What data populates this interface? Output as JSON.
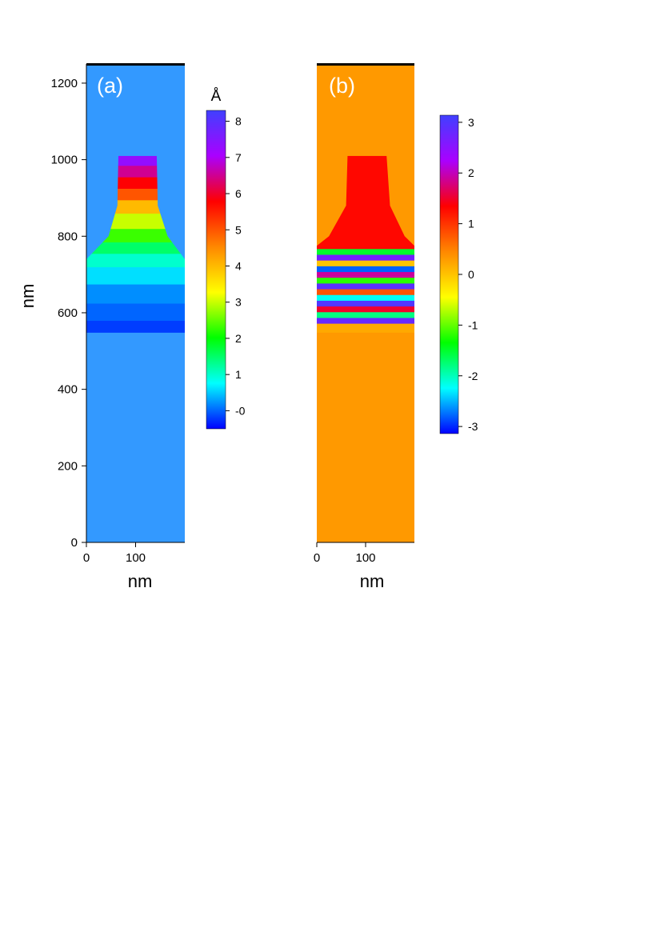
{
  "chart_data": [
    {
      "type": "heatmap",
      "panel_label": "(a)",
      "xlabel": "nm",
      "ylabel": "nm",
      "x_ticks": [
        0,
        100
      ],
      "y_ticks": [
        0,
        200,
        400,
        600,
        800,
        1000,
        1200
      ],
      "xlim": [
        0,
        200
      ],
      "ylim": [
        0,
        1250
      ],
      "background_color": "#3399ff",
      "colorbar": {
        "unit": "Å",
        "range": [
          -0.5,
          8.3
        ],
        "ticks": [
          8,
          7,
          6,
          5,
          4,
          3,
          2,
          1,
          0
        ],
        "tick_labels": [
          "8",
          "7",
          "6",
          "5",
          "4",
          "3",
          "2",
          "1",
          "-0"
        ],
        "colormap": [
          "#0000ff",
          "#00ffff",
          "#00ff00",
          "#ffff00",
          "#ff8800",
          "#ff0000",
          "#aa00ff",
          "#4040ff"
        ]
      },
      "structure_outline_nm": [
        [
          0,
          548
        ],
        [
          200,
          548
        ],
        [
          200,
          740
        ],
        [
          165,
          800
        ],
        [
          145,
          880
        ],
        [
          143,
          1010
        ],
        [
          65,
          1010
        ],
        [
          63,
          880
        ],
        [
          45,
          800
        ],
        [
          0,
          740
        ]
      ],
      "field_profile_center": [
        {
          "y": 560,
          "value": -0.2
        },
        {
          "y": 600,
          "value": 0.0
        },
        {
          "y": 650,
          "value": 0.2
        },
        {
          "y": 700,
          "value": 0.6
        },
        {
          "y": 740,
          "value": 1.0
        },
        {
          "y": 770,
          "value": 1.5
        },
        {
          "y": 800,
          "value": 2.3
        },
        {
          "y": 840,
          "value": 3.0
        },
        {
          "y": 880,
          "value": 4.0
        },
        {
          "y": 910,
          "value": 5.0
        },
        {
          "y": 940,
          "value": 5.8
        },
        {
          "y": 970,
          "value": 6.5
        },
        {
          "y": 1000,
          "value": 7.3
        }
      ]
    },
    {
      "type": "heatmap",
      "panel_label": "(b)",
      "xlabel": "nm",
      "x_ticks": [
        0,
        100
      ],
      "xlim": [
        0,
        200
      ],
      "ylim": [
        0,
        1250
      ],
      "background_color": "#ff9900",
      "colorbar": {
        "range": [
          -3.14,
          3.14
        ],
        "ticks": [
          3,
          2,
          1,
          0,
          -1,
          -2,
          -3
        ],
        "tick_labels": [
          "3",
          "2",
          "1",
          "0",
          "-1",
          "-2",
          "-3"
        ],
        "colormap": [
          "#0000ff",
          "#00ffff",
          "#00ff00",
          "#ffff00",
          "#ff8800",
          "#ff0000",
          "#aa00ff",
          "#4040ff"
        ]
      },
      "structure_outline_nm": [
        [
          0,
          548
        ],
        [
          200,
          548
        ],
        [
          200,
          775
        ],
        [
          180,
          800
        ],
        [
          150,
          880
        ],
        [
          143,
          1010
        ],
        [
          63,
          1010
        ],
        [
          60,
          880
        ],
        [
          25,
          800
        ],
        [
          0,
          775
        ]
      ],
      "phase_stripes": [
        {
          "y": 565,
          "value": 0.2
        },
        {
          "y": 580,
          "value": 2.8
        },
        {
          "y": 595,
          "value": -1.8
        },
        {
          "y": 610,
          "value": 1.5
        },
        {
          "y": 625,
          "value": 3.0
        },
        {
          "y": 640,
          "value": -2.2
        },
        {
          "y": 655,
          "value": 0.8
        },
        {
          "y": 670,
          "value": 2.9
        },
        {
          "y": 685,
          "value": -1.2
        },
        {
          "y": 700,
          "value": 1.9
        },
        {
          "y": 715,
          "value": -2.8
        },
        {
          "y": 730,
          "value": 0.0
        },
        {
          "y": 745,
          "value": 2.7
        },
        {
          "y": 760,
          "value": -1.5
        },
        {
          "y": 775,
          "value": 1.3
        }
      ]
    }
  ]
}
